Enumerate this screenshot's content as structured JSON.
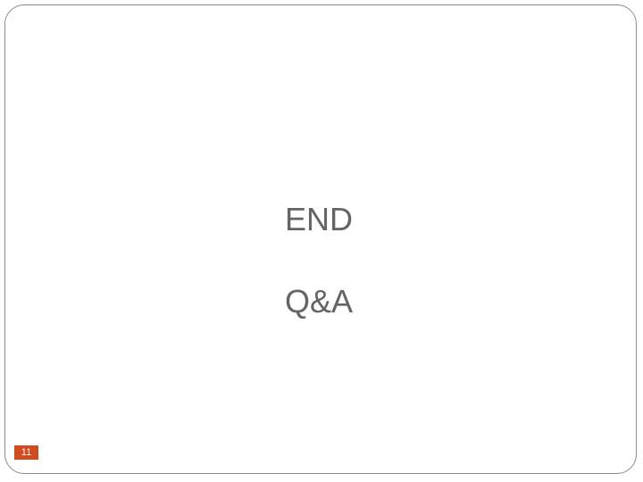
{
  "slide": {
    "title_line": "END",
    "subtitle_line": "Q&A",
    "number": "11"
  },
  "colors": {
    "text": "#646464",
    "accent": "#d24a1e",
    "frame": "#8c8c8c"
  }
}
